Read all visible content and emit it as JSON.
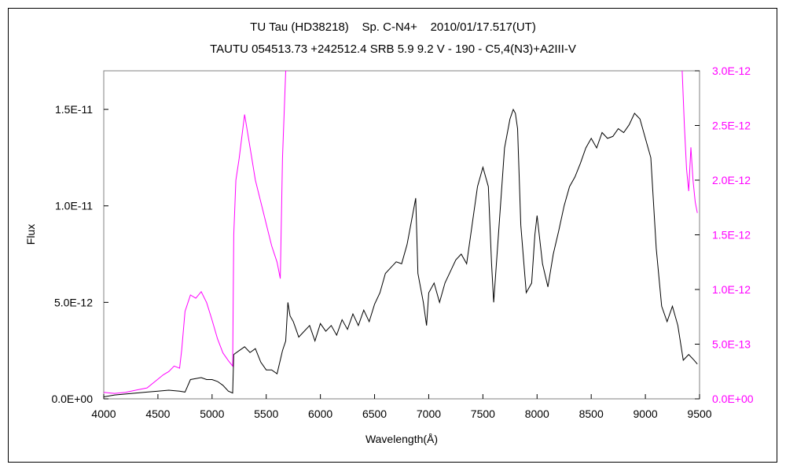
{
  "chart_data": {
    "type": "line",
    "title": "TU Tau (HD38218)    Sp. C-N4+    2010/01/17.517(UT)",
    "subtitle": "TAUTU 054513.73 +242512.4 SRB 5.9 9.2 V - 190 - C5,4(N3)+A2III-V",
    "xlabel": "Wavelength(Å)",
    "ylabel": "Flux",
    "xlim": [
      4000,
      9500
    ],
    "ylim_left": [
      0,
      1.7e-11
    ],
    "ylim_right": [
      0,
      3e-12
    ],
    "x_ticks": [
      "4000",
      "4500",
      "5000",
      "5500",
      "6000",
      "6500",
      "7000",
      "7500",
      "8000",
      "8500",
      "9000",
      "9500"
    ],
    "y_left_ticks": [
      {
        "value": 0,
        "label": "0.0E+00"
      },
      {
        "value": 5e-12,
        "label": "5.0E-12"
      },
      {
        "value": 1e-11,
        "label": "1.0E-11"
      },
      {
        "value": 1.5e-11,
        "label": "1.5E-11"
      }
    ],
    "y_right_ticks": [
      {
        "value": 0,
        "label": "0.0E+00"
      },
      {
        "value": 5e-13,
        "label": "5.0E-13"
      },
      {
        "value": 1e-12,
        "label": "1.0E-12"
      },
      {
        "value": 1.5e-12,
        "label": "1.5E-12"
      },
      {
        "value": 2e-12,
        "label": "2.0E-12"
      },
      {
        "value": 2.5e-12,
        "label": "2.5E-12"
      },
      {
        "value": 3e-12,
        "label": "3.0E-12"
      }
    ],
    "grid": false,
    "legend": "none",
    "colors": {
      "black_series": "#000000",
      "magenta_series": "#ff00ff"
    },
    "series": [
      {
        "axis": "left",
        "color": "#000000",
        "x": [
          4000,
          4100,
          4200,
          4300,
          4400,
          4500,
          4600,
          4700,
          4750,
          4800,
          4850,
          4900,
          4950,
          5000,
          5050,
          5100,
          5150,
          5190,
          5200,
          5250,
          5300,
          5350,
          5400,
          5450,
          5500,
          5550,
          5600,
          5650,
          5680,
          5700,
          5720,
          5750,
          5800,
          5850,
          5900,
          5950,
          6000,
          6050,
          6100,
          6150,
          6200,
          6250,
          6300,
          6350,
          6400,
          6450,
          6500,
          6550,
          6600,
          6650,
          6700,
          6750,
          6800,
          6850,
          6880,
          6900,
          6950,
          6980,
          7000,
          7050,
          7100,
          7150,
          7200,
          7250,
          7300,
          7350,
          7400,
          7450,
          7500,
          7550,
          7580,
          7600,
          7650,
          7700,
          7750,
          7780,
          7800,
          7820,
          7850,
          7900,
          7950,
          7980,
          8000,
          8050,
          8100,
          8150,
          8200,
          8250,
          8300,
          8350,
          8400,
          8450,
          8500,
          8550,
          8600,
          8650,
          8700,
          8750,
          8800,
          8850,
          8900,
          8950,
          9000,
          9050,
          9100,
          9150,
          9200,
          9250,
          9300,
          9350,
          9400,
          9450,
          9480
        ],
        "y": [
          1e-13,
          2e-13,
          2.5e-13,
          3e-13,
          3.5e-13,
          4e-13,
          4.5e-13,
          4e-13,
          3.5e-13,
          1e-12,
          1.05e-12,
          1.1e-12,
          1e-12,
          1e-12,
          9e-13,
          7e-13,
          4e-13,
          3e-13,
          2.3e-12,
          2.5e-12,
          2.7e-12,
          2.4e-12,
          2.6e-12,
          1.9e-12,
          1.5e-12,
          1.5e-12,
          1.3e-12,
          2.5e-12,
          3e-12,
          5e-12,
          4.3e-12,
          4e-12,
          3.2e-12,
          3.5e-12,
          3.8e-12,
          3e-12,
          3.9e-12,
          3.5e-12,
          3.8e-12,
          3.3e-12,
          4.1e-12,
          3.6e-12,
          4.4e-12,
          3.8e-12,
          4.6e-12,
          4e-12,
          4.9e-12,
          5.5e-12,
          6.5e-12,
          6.8e-12,
          7.1e-12,
          7e-12,
          8e-12,
          9.5e-12,
          1.04e-11,
          6.5e-12,
          5e-12,
          3.8e-12,
          5.5e-12,
          6e-12,
          5e-12,
          6e-12,
          6.6e-12,
          7.2e-12,
          7.5e-12,
          7e-12,
          9e-12,
          1.1e-11,
          1.2e-11,
          1.1e-11,
          7e-12,
          5e-12,
          9e-12,
          1.3e-11,
          1.45e-11,
          1.5e-11,
          1.48e-11,
          1.4e-11,
          9e-12,
          5.5e-12,
          6e-12,
          8.5e-12,
          9.5e-12,
          7e-12,
          5.8e-12,
          7.5e-12,
          8.7e-12,
          1e-11,
          1.1e-11,
          1.15e-11,
          1.22e-11,
          1.3e-11,
          1.35e-11,
          1.3e-11,
          1.38e-11,
          1.35e-11,
          1.36e-11,
          1.4e-11,
          1.38e-11,
          1.42e-11,
          1.48e-11,
          1.45e-11,
          1.35e-11,
          1.25e-11,
          7.8e-12,
          4.8e-12,
          4e-12,
          4.8e-12,
          3.8e-12,
          2e-12,
          2.3e-12,
          2e-12,
          1.8e-12
        ]
      },
      {
        "axis": "right",
        "color": "#ff00ff",
        "x": [
          4000,
          4100,
          4200,
          4300,
          4400,
          4500,
          4550,
          4600,
          4650,
          4700,
          4720,
          4750,
          4800,
          4850,
          4900,
          4950,
          5000,
          5050,
          5100,
          5150,
          5190,
          5200,
          5220,
          5250,
          5300,
          5350,
          5400,
          5450,
          5500,
          5550,
          5600,
          5630,
          5650,
          5680,
          5700
        ],
        "y": [
          6e-14,
          5e-14,
          6e-14,
          8e-14,
          1e-13,
          1.8e-13,
          2.2e-13,
          2.5e-13,
          3e-13,
          2.8e-13,
          4.5e-13,
          8e-13,
          9.5e-13,
          9.2e-13,
          9.8e-13,
          8.8e-13,
          7.2e-13,
          5.5e-13,
          4.2e-13,
          3.5e-13,
          3e-13,
          1.5e-12,
          2e-12,
          2.2e-12,
          2.6e-12,
          2.3e-12,
          2e-12,
          1.8e-12,
          1.6e-12,
          1.4e-12,
          1.25e-12,
          1.1e-12,
          2.2e-12,
          3e-12,
          3e-12
        ]
      },
      {
        "axis": "right",
        "color": "#ff00ff",
        "x": [
          9340,
          9360,
          9380,
          9400,
          9420,
          9440,
          9460,
          9480
        ],
        "y": [
          3e-12,
          2.5e-12,
          2.1e-12,
          1.9e-12,
          2.3e-12,
          2e-12,
          1.8e-12,
          1.7e-12
        ]
      }
    ]
  }
}
